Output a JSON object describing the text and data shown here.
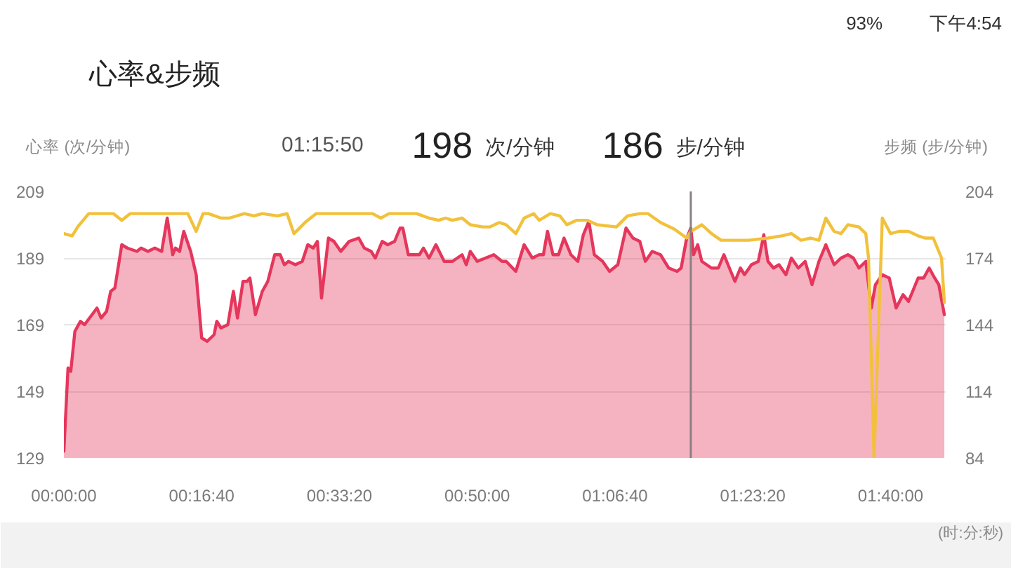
{
  "chart_data": {
    "type": "line",
    "title": "心率&步频",
    "xlabel": "(时:分:秒)",
    "ylabel": "心率 (次/分钟)",
    "y2label": "步频 (步/分钟)",
    "annotations": [
      "01:15:50",
      "198 次/分钟",
      "186 步/分钟",
      "93%",
      "下午4:54"
    ],
    "xlim": [
      0,
      1.77778
    ],
    "xticks": [
      {
        "value": 0,
        "label": "00:00:00"
      },
      {
        "value": 0.27778,
        "label": "00:16:40"
      },
      {
        "value": 0.55556,
        "label": "00:33:20"
      },
      {
        "value": 0.83333,
        "label": "00:50:00"
      },
      {
        "value": 1.11111,
        "label": "01:06:40"
      },
      {
        "value": 1.38889,
        "label": "01:23:20"
      },
      {
        "value": 1.66667,
        "label": "01:40:00"
      }
    ],
    "ylim": [
      129,
      209
    ],
    "yticks": [
      129,
      149,
      169,
      189,
      209
    ],
    "y2lim": [
      84,
      204
    ],
    "y2ticks": [
      84,
      114,
      144,
      174,
      204
    ],
    "grid": "y",
    "ref_lines": [
      {
        "axis": "x",
        "value": 1.26389,
        "color": "#8c7f84"
      }
    ],
    "series": [
      {
        "type": "area",
        "color": "#e5365c",
        "x": [
          0,
          0.0083,
          0.0139,
          0.0222,
          0.0333,
          0.0417,
          0.0667,
          0.075,
          0.0861,
          0.0944,
          0.1028,
          0.1167,
          0.1278,
          0.1472,
          0.1556,
          0.1694,
          0.1833,
          0.1972,
          0.2083,
          0.2194,
          0.225,
          0.2333,
          0.2417,
          0.2556,
          0.2667,
          0.2778,
          0.2889,
          0.3028,
          0.3083,
          0.3167,
          0.3306,
          0.3417,
          0.35,
          0.3611,
          0.3694,
          0.375,
          0.3861,
          0.4,
          0.4111,
          0.425,
          0.4361,
          0.4444,
          0.4528,
          0.4667,
          0.4806,
          0.4917,
          0.5028,
          0.5111,
          0.5194,
          0.5333,
          0.5444,
          0.5583,
          0.575,
          0.5944,
          0.6056,
          0.6194,
          0.6278,
          0.6417,
          0.6528,
          0.6667,
          0.6778,
          0.6833,
          0.6944,
          0.7083,
          0.7167,
          0.725,
          0.7361,
          0.75,
          0.7667,
          0.7833,
          0.8028,
          0.8111,
          0.8194,
          0.8333,
          0.85,
          0.8667,
          0.8833,
          0.8917,
          0.9111,
          0.9278,
          0.9444,
          0.9583,
          0.9667,
          0.975,
          0.9861,
          0.9972,
          1.0083,
          1.0222,
          1.0361,
          1.0472,
          1.0583,
          1.0694,
          1.0861,
          1.1,
          1.1167,
          1.1333,
          1.1472,
          1.1611,
          1.1722,
          1.1861,
          1.2028,
          1.2194,
          1.2361,
          1.2444,
          1.2556,
          1.2639,
          1.2694,
          1.2778,
          1.2861,
          1.3056,
          1.3194,
          1.3306,
          1.3417,
          1.3528,
          1.3639,
          1.3722,
          1.3861,
          1.4,
          1.4111,
          1.4194,
          1.4306,
          1.4417,
          1.4556,
          1.4667,
          1.4806,
          1.4944,
          1.5083,
          1.5222,
          1.5361,
          1.5528,
          1.5667,
          1.5806,
          1.5917,
          1.6028,
          1.6167,
          1.6278,
          1.6361,
          1.65,
          1.6639,
          1.6778,
          1.6917,
          1.7028,
          1.7222,
          1.7333,
          1.7444,
          1.7556,
          1.7639,
          1.775
        ],
        "values": [
          131,
          156,
          155,
          167,
          170,
          169,
          174,
          171,
          173,
          179,
          180,
          193,
          192,
          191,
          192,
          191,
          192,
          191,
          201,
          190,
          192,
          191,
          197,
          191,
          184,
          165,
          164,
          166,
          170,
          168,
          169,
          179,
          171,
          182,
          182,
          183,
          172,
          179,
          182,
          190,
          190,
          187,
          188,
          187,
          188,
          193,
          192,
          194,
          177,
          195,
          194,
          191,
          194,
          195,
          192,
          191,
          189,
          194,
          193,
          194,
          198,
          198,
          190,
          190,
          190,
          192,
          189,
          193,
          188,
          188,
          190,
          187,
          191,
          188,
          189,
          190,
          188,
          188,
          185,
          193,
          189,
          190,
          190,
          197,
          190,
          190,
          195,
          190,
          188,
          196,
          200,
          190,
          188,
          185,
          187,
          198,
          195,
          194,
          188,
          191,
          190,
          186,
          185,
          186,
          195,
          198,
          190,
          193,
          188,
          186,
          186,
          190,
          186,
          182,
          186,
          184,
          187,
          188,
          196,
          188,
          186,
          187,
          184,
          189,
          186,
          188,
          181,
          188,
          193,
          187,
          189,
          190,
          189,
          186,
          188,
          174,
          181,
          184,
          183,
          174,
          178,
          176,
          183,
          183,
          186,
          183,
          181,
          172
        ]
      },
      {
        "color": "#f2c13c",
        "axis": "y2",
        "x": [
          0,
          0.0167,
          0.0278,
          0.05,
          0.1,
          0.1167,
          0.1333,
          0.25,
          0.2667,
          0.2806,
          0.2917,
          0.3167,
          0.3333,
          0.3639,
          0.3833,
          0.4,
          0.4306,
          0.45,
          0.4639,
          0.4861,
          0.5083,
          0.5333,
          0.6222,
          0.6389,
          0.6556,
          0.6833,
          0.7111,
          0.7361,
          0.7556,
          0.7694,
          0.7833,
          0.8028,
          0.8194,
          0.8444,
          0.8583,
          0.8778,
          0.8917,
          0.9111,
          0.9278,
          0.9472,
          0.9583,
          0.9806,
          1,
          1.0139,
          1.0333,
          1.0556,
          1.075,
          1.1139,
          1.1361,
          1.1611,
          1.1778,
          1.2028,
          1.2306,
          1.2556,
          1.2639,
          1.2861,
          1.3056,
          1.325,
          1.3806,
          1.4194,
          1.4472,
          1.4667,
          1.4861,
          1.5056,
          1.5222,
          1.5361,
          1.5528,
          1.5667,
          1.5806,
          1.6028,
          1.6167,
          1.6222,
          1.6333,
          1.65,
          1.6667,
          1.6833,
          1.7028,
          1.7222,
          1.7361,
          1.7528,
          1.7694,
          1.775
        ],
        "values": [
          185,
          184,
          188,
          194,
          194,
          191,
          194,
          194,
          186,
          194,
          194,
          192,
          192,
          194,
          193,
          194,
          193,
          194,
          185,
          190,
          194,
          194,
          194,
          192,
          194,
          194,
          194,
          192,
          191,
          192,
          191,
          192,
          189,
          188,
          188,
          190,
          189,
          185,
          192,
          194,
          191,
          194,
          193,
          189,
          191,
          191,
          189,
          188,
          193,
          194,
          194,
          190,
          187,
          183,
          186,
          189,
          185,
          182,
          182,
          183,
          184,
          185,
          182,
          183,
          182,
          192,
          186,
          185,
          189,
          188,
          185,
          174,
          84,
          192,
          185,
          186,
          186,
          184,
          183,
          183,
          174,
          154
        ]
      }
    ]
  }
}
